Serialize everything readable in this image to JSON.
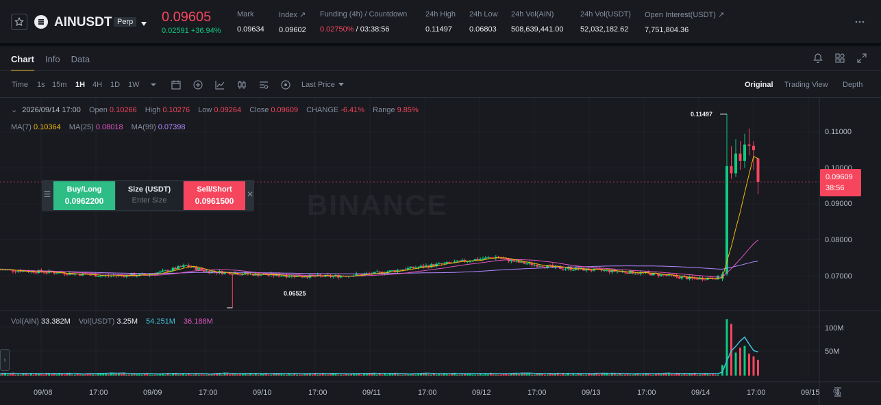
{
  "ticker": {
    "symbol": "AINUSDT",
    "badge": "Perp",
    "last_price": "0.09605",
    "change": "0.02591 +36.94%",
    "stats": [
      {
        "label": "Mark",
        "value": "0.09634"
      },
      {
        "label": "Index ↗",
        "value": "0.09602"
      },
      {
        "label": "Funding (4h) / Countdown",
        "value_rate": "0.02750%",
        "value_rest": " / 03:38:56"
      },
      {
        "label": "24h High",
        "value": "0.11497"
      },
      {
        "label": "24h Low",
        "value": "0.06803"
      },
      {
        "label": "24h Vol(AIN)",
        "value": "508,639,441.00"
      },
      {
        "label": "24h Vol(USDT)",
        "value": "52,032,182.62"
      },
      {
        "label": "Open Interest(USDT) ↗",
        "value": "7,751,804.36"
      }
    ]
  },
  "tabs": [
    "Chart",
    "Info",
    "Data"
  ],
  "toolbar": {
    "intervals": [
      "Time",
      "1s",
      "15m",
      "1H",
      "4H",
      "1D",
      "1W"
    ],
    "active_interval": "1H",
    "price_type": "Last Price",
    "views": [
      "Original",
      "Trading View",
      "Depth"
    ],
    "active_view": "Original"
  },
  "legend": {
    "date": "2026/09/14 17:00",
    "open_label": "Open",
    "open": "0.10266",
    "high_label": "High",
    "high": "0.10276",
    "low_label": "Low",
    "low": "0.09264",
    "close_label": "Close",
    "close": "0.09609",
    "change_label": "CHANGE",
    "change": "-6.41%",
    "range_label": "Range",
    "range": "9.85%",
    "ma7_label": "MA(7)",
    "ma7": "0.10364",
    "ma25_label": "MA(25)",
    "ma25": "0.08018",
    "ma99_label": "MA(99)",
    "ma99": "0.07398"
  },
  "order": {
    "buy_label": "Buy/Long",
    "buy_price": "0.0962200",
    "size_label": "Size (USDT)",
    "size_placeholder": "Enter Size",
    "sell_label": "Sell/Short",
    "sell_price": "0.0961500"
  },
  "watermark": "BINANCE",
  "price_tag": {
    "price": "0.09609",
    "countdown": "38:56"
  },
  "volume_legend": {
    "vol_ain_label": "Vol(AIN)",
    "vol_ain": "33.382M",
    "vol_usdt_label": "Vol(USDT)",
    "vol_usdt": "3.25M",
    "ma1": "54.251M",
    "ma2": "36.188M"
  },
  "colors": {
    "up": "#0ecb81",
    "down": "#f6465d",
    "ma7": "#f0b90b",
    "ma25": "#e056c0",
    "ma99": "#b388ff",
    "vol_ma": "#43c3d9"
  },
  "chart_data": {
    "type": "candlestick",
    "interval": "1H",
    "x_ticks": [
      "09/08",
      "17:00",
      "09/09",
      "17:00",
      "09/10",
      "17:00",
      "09/11",
      "17:00",
      "09/12",
      "17:00",
      "09/13",
      "17:00",
      "09/14",
      "17:00",
      "09/15"
    ],
    "y_ticks": [
      "0.11000",
      "0.10000",
      "0.09000",
      "0.08000",
      "0.07000"
    ],
    "ylim": [
      0.0625,
      0.1172
    ],
    "vol_ticks": [
      "100M",
      "50M"
    ],
    "high_marker": "0.11497",
    "low_marker": "0.06525",
    "price_segments": [
      {
        "from": "09/07 22:00",
        "to": "09/14 11:00",
        "open": 0.0715,
        "close": 0.0692,
        "min": 0.0683,
        "max": 0.0758
      },
      {
        "from": "09/14 11:00",
        "to": "09/14 17:00",
        "open": 0.0692,
        "close": 0.09609,
        "min": 0.068,
        "max": 0.11497
      }
    ],
    "volume_typical": "≈3M per candle before 09/14 11:00; 30M–120M per candle after",
    "ma_last": {
      "MA(7)": 0.10364,
      "MA(25)": 0.08018,
      "MA(99)": 0.07398
    }
  }
}
